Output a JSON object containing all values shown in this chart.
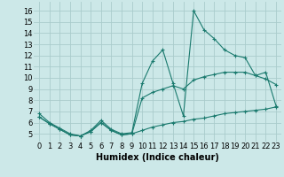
{
  "bg_color": "#cce8e8",
  "grid_color": "#aacccc",
  "line_color": "#1a7a6e",
  "xlabel": "Humidex (Indice chaleur)",
  "xlabel_fontsize": 7.0,
  "tick_fontsize": 6.0,
  "xlim": [
    -0.5,
    23.5
  ],
  "ylim": [
    4.3,
    16.8
  ],
  "yticks": [
    5,
    6,
    7,
    8,
    9,
    10,
    11,
    12,
    13,
    14,
    15,
    16
  ],
  "xticks": [
    0,
    1,
    2,
    3,
    4,
    5,
    6,
    7,
    8,
    9,
    10,
    11,
    12,
    13,
    14,
    15,
    16,
    17,
    18,
    19,
    20,
    21,
    22,
    23
  ],
  "line1_x": [
    0,
    1,
    2,
    3,
    4,
    5,
    6,
    7,
    8,
    9,
    10,
    11,
    12,
    13,
    14,
    15,
    16,
    17,
    18,
    19,
    20,
    21,
    22,
    23
  ],
  "line1_y": [
    6.8,
    6.0,
    5.5,
    5.0,
    4.8,
    5.3,
    6.2,
    5.4,
    5.0,
    5.1,
    9.5,
    11.5,
    12.5,
    9.5,
    6.6,
    16.0,
    14.3,
    13.5,
    12.5,
    12.0,
    11.8,
    10.2,
    10.5,
    7.5
  ],
  "line2_x": [
    0,
    1,
    2,
    3,
    4,
    5,
    6,
    7,
    8,
    9,
    10,
    11,
    12,
    13,
    14,
    15,
    16,
    17,
    18,
    19,
    20,
    21,
    22,
    23
  ],
  "line2_y": [
    6.5,
    5.9,
    5.4,
    4.9,
    4.8,
    5.2,
    6.0,
    5.3,
    4.9,
    5.0,
    8.2,
    8.7,
    9.0,
    9.3,
    9.0,
    9.8,
    10.1,
    10.3,
    10.5,
    10.5,
    10.5,
    10.2,
    9.9,
    9.4
  ],
  "line3_x": [
    0,
    1,
    2,
    3,
    4,
    5,
    6,
    7,
    8,
    9,
    10,
    11,
    12,
    13,
    14,
    15,
    16,
    17,
    18,
    19,
    20,
    21,
    22,
    23
  ],
  "line3_y": [
    6.5,
    5.9,
    5.4,
    4.9,
    4.8,
    5.2,
    6.0,
    5.3,
    4.9,
    5.0,
    5.3,
    5.6,
    5.8,
    6.0,
    6.1,
    6.3,
    6.4,
    6.6,
    6.8,
    6.9,
    7.0,
    7.1,
    7.2,
    7.4
  ]
}
